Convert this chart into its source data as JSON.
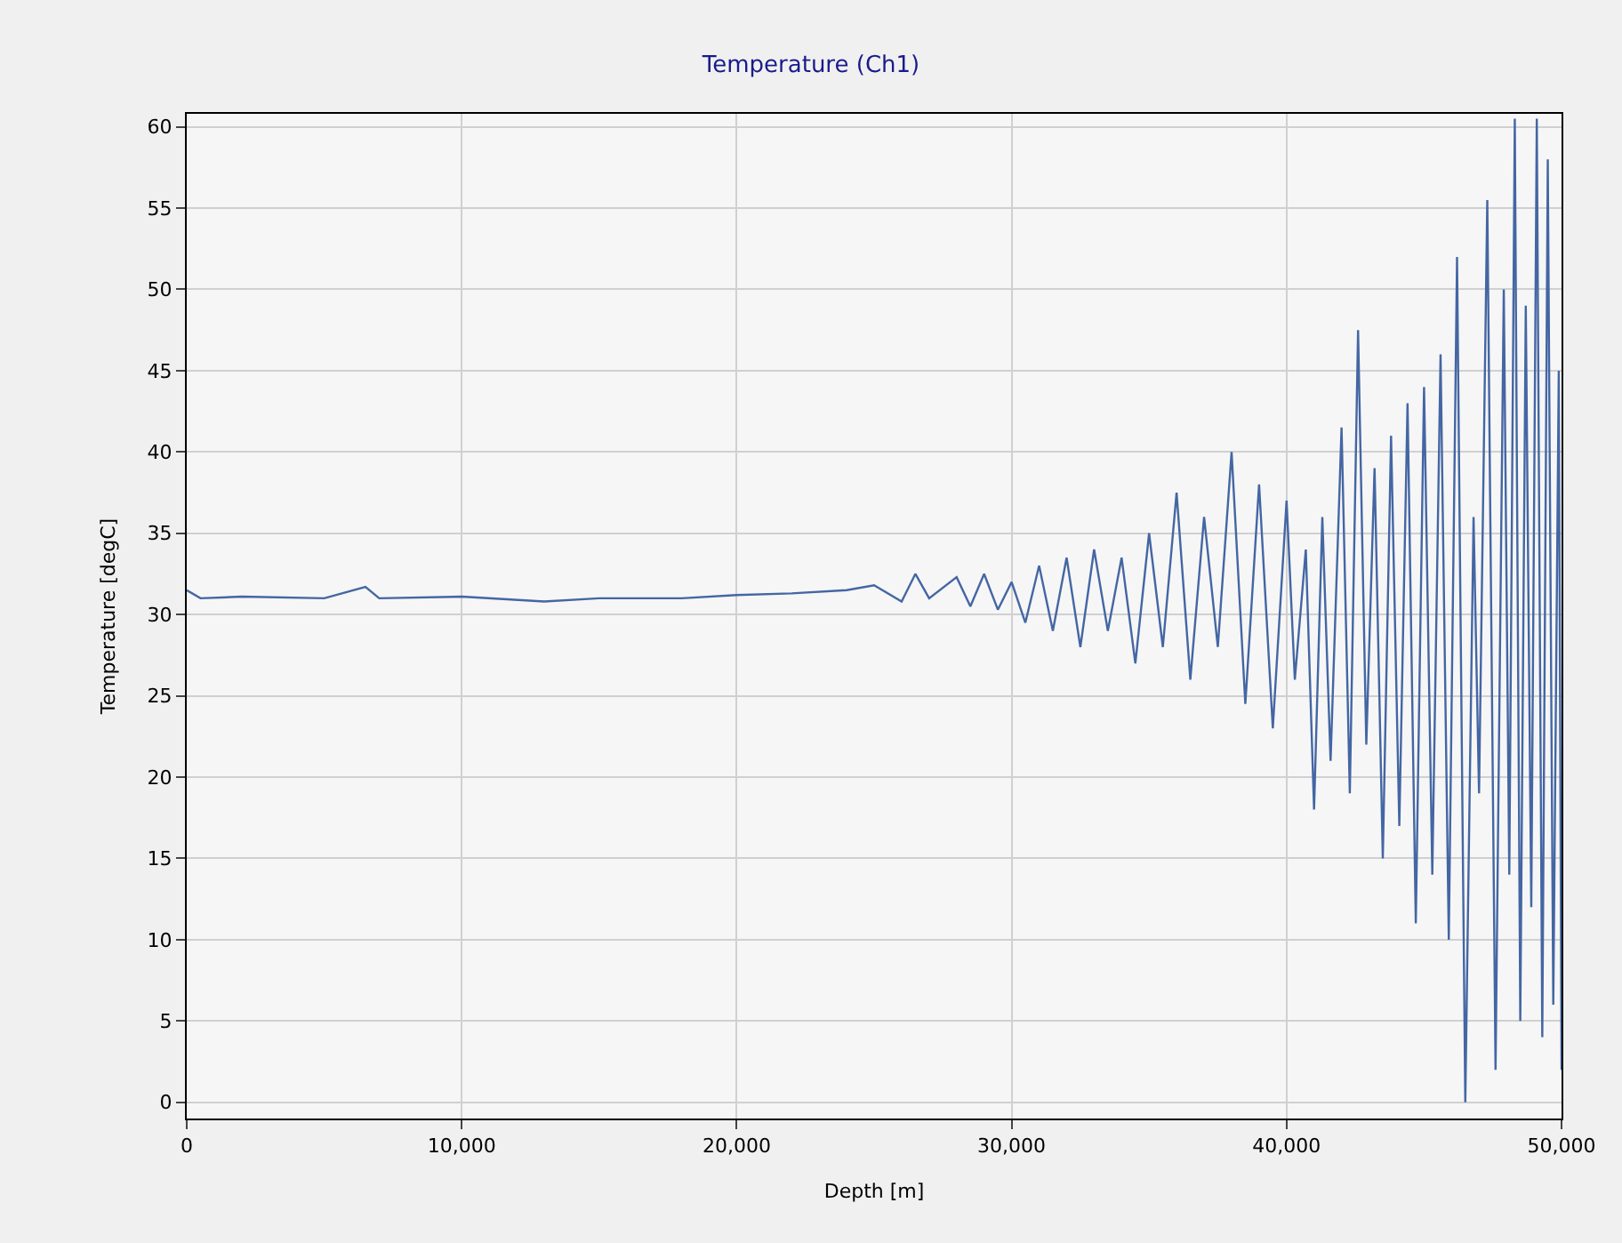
{
  "chart_data": {
    "type": "line",
    "title": "Temperature (Ch1)",
    "xlabel": "Depth [m]",
    "ylabel": "Temperature [degC]",
    "x": [
      0,
      500,
      2000,
      5000,
      6500,
      7000,
      10000,
      13000,
      15000,
      18000,
      20000,
      22000,
      24000,
      25000,
      26000,
      26500,
      27000,
      28000,
      28500,
      29000,
      29500,
      30000,
      30500,
      31000,
      31500,
      32000,
      32500,
      33000,
      33500,
      34000,
      34500,
      35000,
      35500,
      36000,
      36500,
      37000,
      37500,
      38000,
      38500,
      39000,
      39500,
      40000,
      40300,
      40700,
      41000,
      41300,
      41600,
      42000,
      42300,
      42600,
      42900,
      43200,
      43500,
      43800,
      44100,
      44400,
      44700,
      45000,
      45300,
      45600,
      45900,
      46200,
      46500,
      46800,
      47000,
      47300,
      47600,
      47900,
      48100,
      48300,
      48500,
      48700,
      48900,
      49100,
      49300,
      49500,
      49700,
      49900,
      50000
    ],
    "series": [
      {
        "color": "#4466a3",
        "values": [
          31.5,
          31,
          31.1,
          31,
          31.7,
          31,
          31.1,
          30.8,
          31,
          31,
          31.2,
          31.3,
          31.5,
          31.8,
          30.8,
          32.5,
          31,
          32.3,
          30.5,
          32.5,
          30.3,
          32,
          29.5,
          33,
          29,
          33.5,
          28,
          34,
          29,
          33.5,
          27,
          35,
          28,
          37.5,
          26,
          36,
          28,
          40,
          24.5,
          38,
          23,
          37,
          26,
          34,
          18,
          36,
          21,
          41.5,
          19,
          47.5,
          22,
          39,
          15,
          41,
          17,
          43,
          11,
          44,
          14,
          46,
          10,
          52,
          0,
          36,
          19,
          55.5,
          2,
          50,
          14,
          60.5,
          5,
          49,
          12,
          60.5,
          4,
          58,
          6,
          45,
          2
        ]
      }
    ],
    "xlim": [
      0,
      50000
    ],
    "ylim": [
      -1,
      60.8
    ],
    "xticks": [
      0,
      {
        "value": 10000,
        "label": "10,000"
      },
      {
        "value": 20000,
        "label": "20,000"
      },
      {
        "value": 30000,
        "label": "30,000"
      },
      {
        "value": 40000,
        "label": "40,000"
      },
      {
        "value": 50000,
        "label": "50,000"
      }
    ],
    "yticks": [
      0,
      5,
      10,
      15,
      20,
      25,
      30,
      35,
      40,
      45,
      50,
      55,
      60
    ],
    "grid": true,
    "line_style": "solid"
  }
}
